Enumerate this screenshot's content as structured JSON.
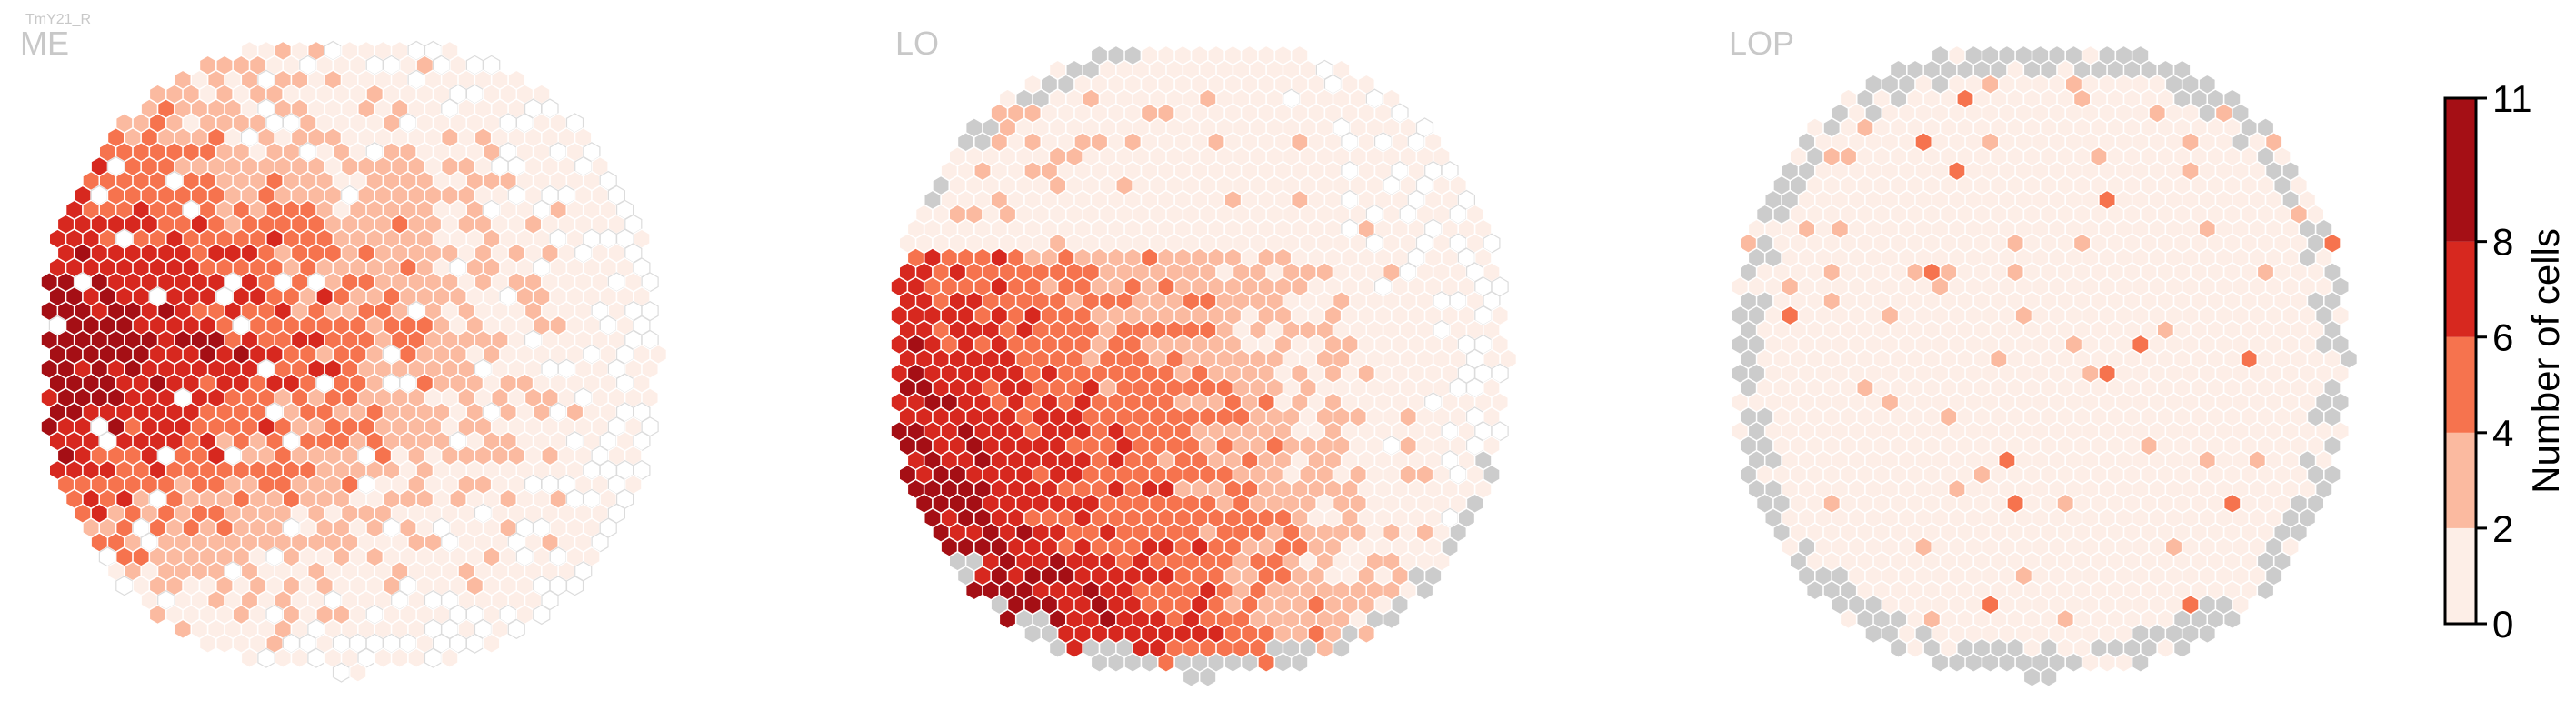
{
  "figure": {
    "cell_type": "TmY21_R"
  },
  "colorbar": {
    "label": "Number of cells",
    "ticks": [
      "0",
      "2",
      "4",
      "6",
      "8",
      "11"
    ],
    "colors": [
      "#fdeee7",
      "#fbbaa0",
      "#f6734e",
      "#d7281f",
      "#a50f15"
    ],
    "tick_values": [
      0,
      2,
      4,
      6,
      8,
      11
    ]
  },
  "chart_data": [
    {
      "type": "heatmap",
      "title": "ME",
      "value_range": [
        0,
        11
      ],
      "colormap": "Reds",
      "unmapped_color": "#cccccc",
      "empty_edge_color": "#d9d9d9",
      "summary": "Highest counts (8-11) concentrated on the left-center region; counts decrease toward the right and top; many columns with 0."
    },
    {
      "type": "heatmap",
      "title": "LO",
      "value_range": [
        0,
        11
      ],
      "colormap": "Reds",
      "unmapped_color": "#cccccc",
      "summary": "Highest counts (8-11) along the lower-left edge; moderate counts in the lower-center; low counts elsewhere; a few unmapped (grey) columns on the rim."
    },
    {
      "type": "heatmap",
      "title": "LOP",
      "value_range": [
        0,
        11
      ],
      "colormap": "Reds",
      "unmapped_color": "#cccccc",
      "summary": "Mostly 0-2 cells per column with sparse 2-6 values; many unmapped (grey) columns around the left and right rims."
    }
  ]
}
